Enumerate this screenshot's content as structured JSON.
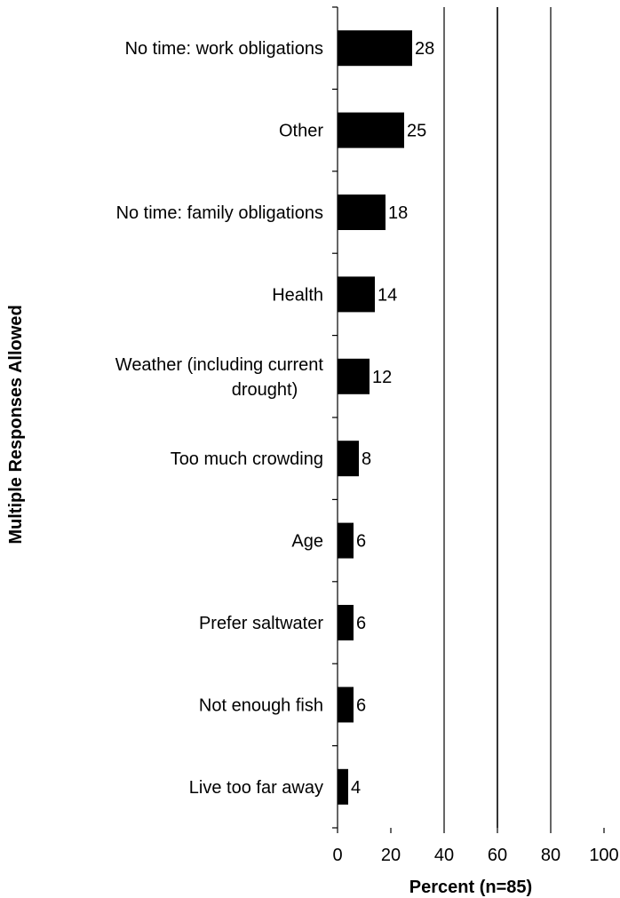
{
  "chart_data": {
    "type": "bar",
    "orientation": "horizontal",
    "categories": [
      [
        "No time: work obligations"
      ],
      [
        "Other"
      ],
      [
        "No time: family obligations"
      ],
      [
        "Health"
      ],
      [
        "Weather (including current",
        "drought)"
      ],
      [
        "Too much crowding"
      ],
      [
        "Age"
      ],
      [
        "Prefer saltwater"
      ],
      [
        "Not enough fish"
      ],
      [
        "Live too far away"
      ]
    ],
    "values": [
      28,
      25,
      18,
      14,
      12,
      8,
      6,
      6,
      6,
      4
    ],
    "data_labels": [
      "28",
      "25",
      "18",
      "14",
      "12",
      "8",
      "6",
      "6",
      "6",
      "4"
    ],
    "xlabel": "Percent (n=85)",
    "ylabel": "Multiple Responses Allowed",
    "xlim": [
      0,
      100
    ],
    "xticks": [
      0,
      20,
      40,
      60,
      80,
      100
    ],
    "xtick_labels": [
      "0",
      "20",
      "40",
      "60",
      "80",
      "100"
    ],
    "vertical_gridlines_at": [
      40,
      60,
      80
    ],
    "bar_color": "#000000",
    "legend": "none"
  }
}
